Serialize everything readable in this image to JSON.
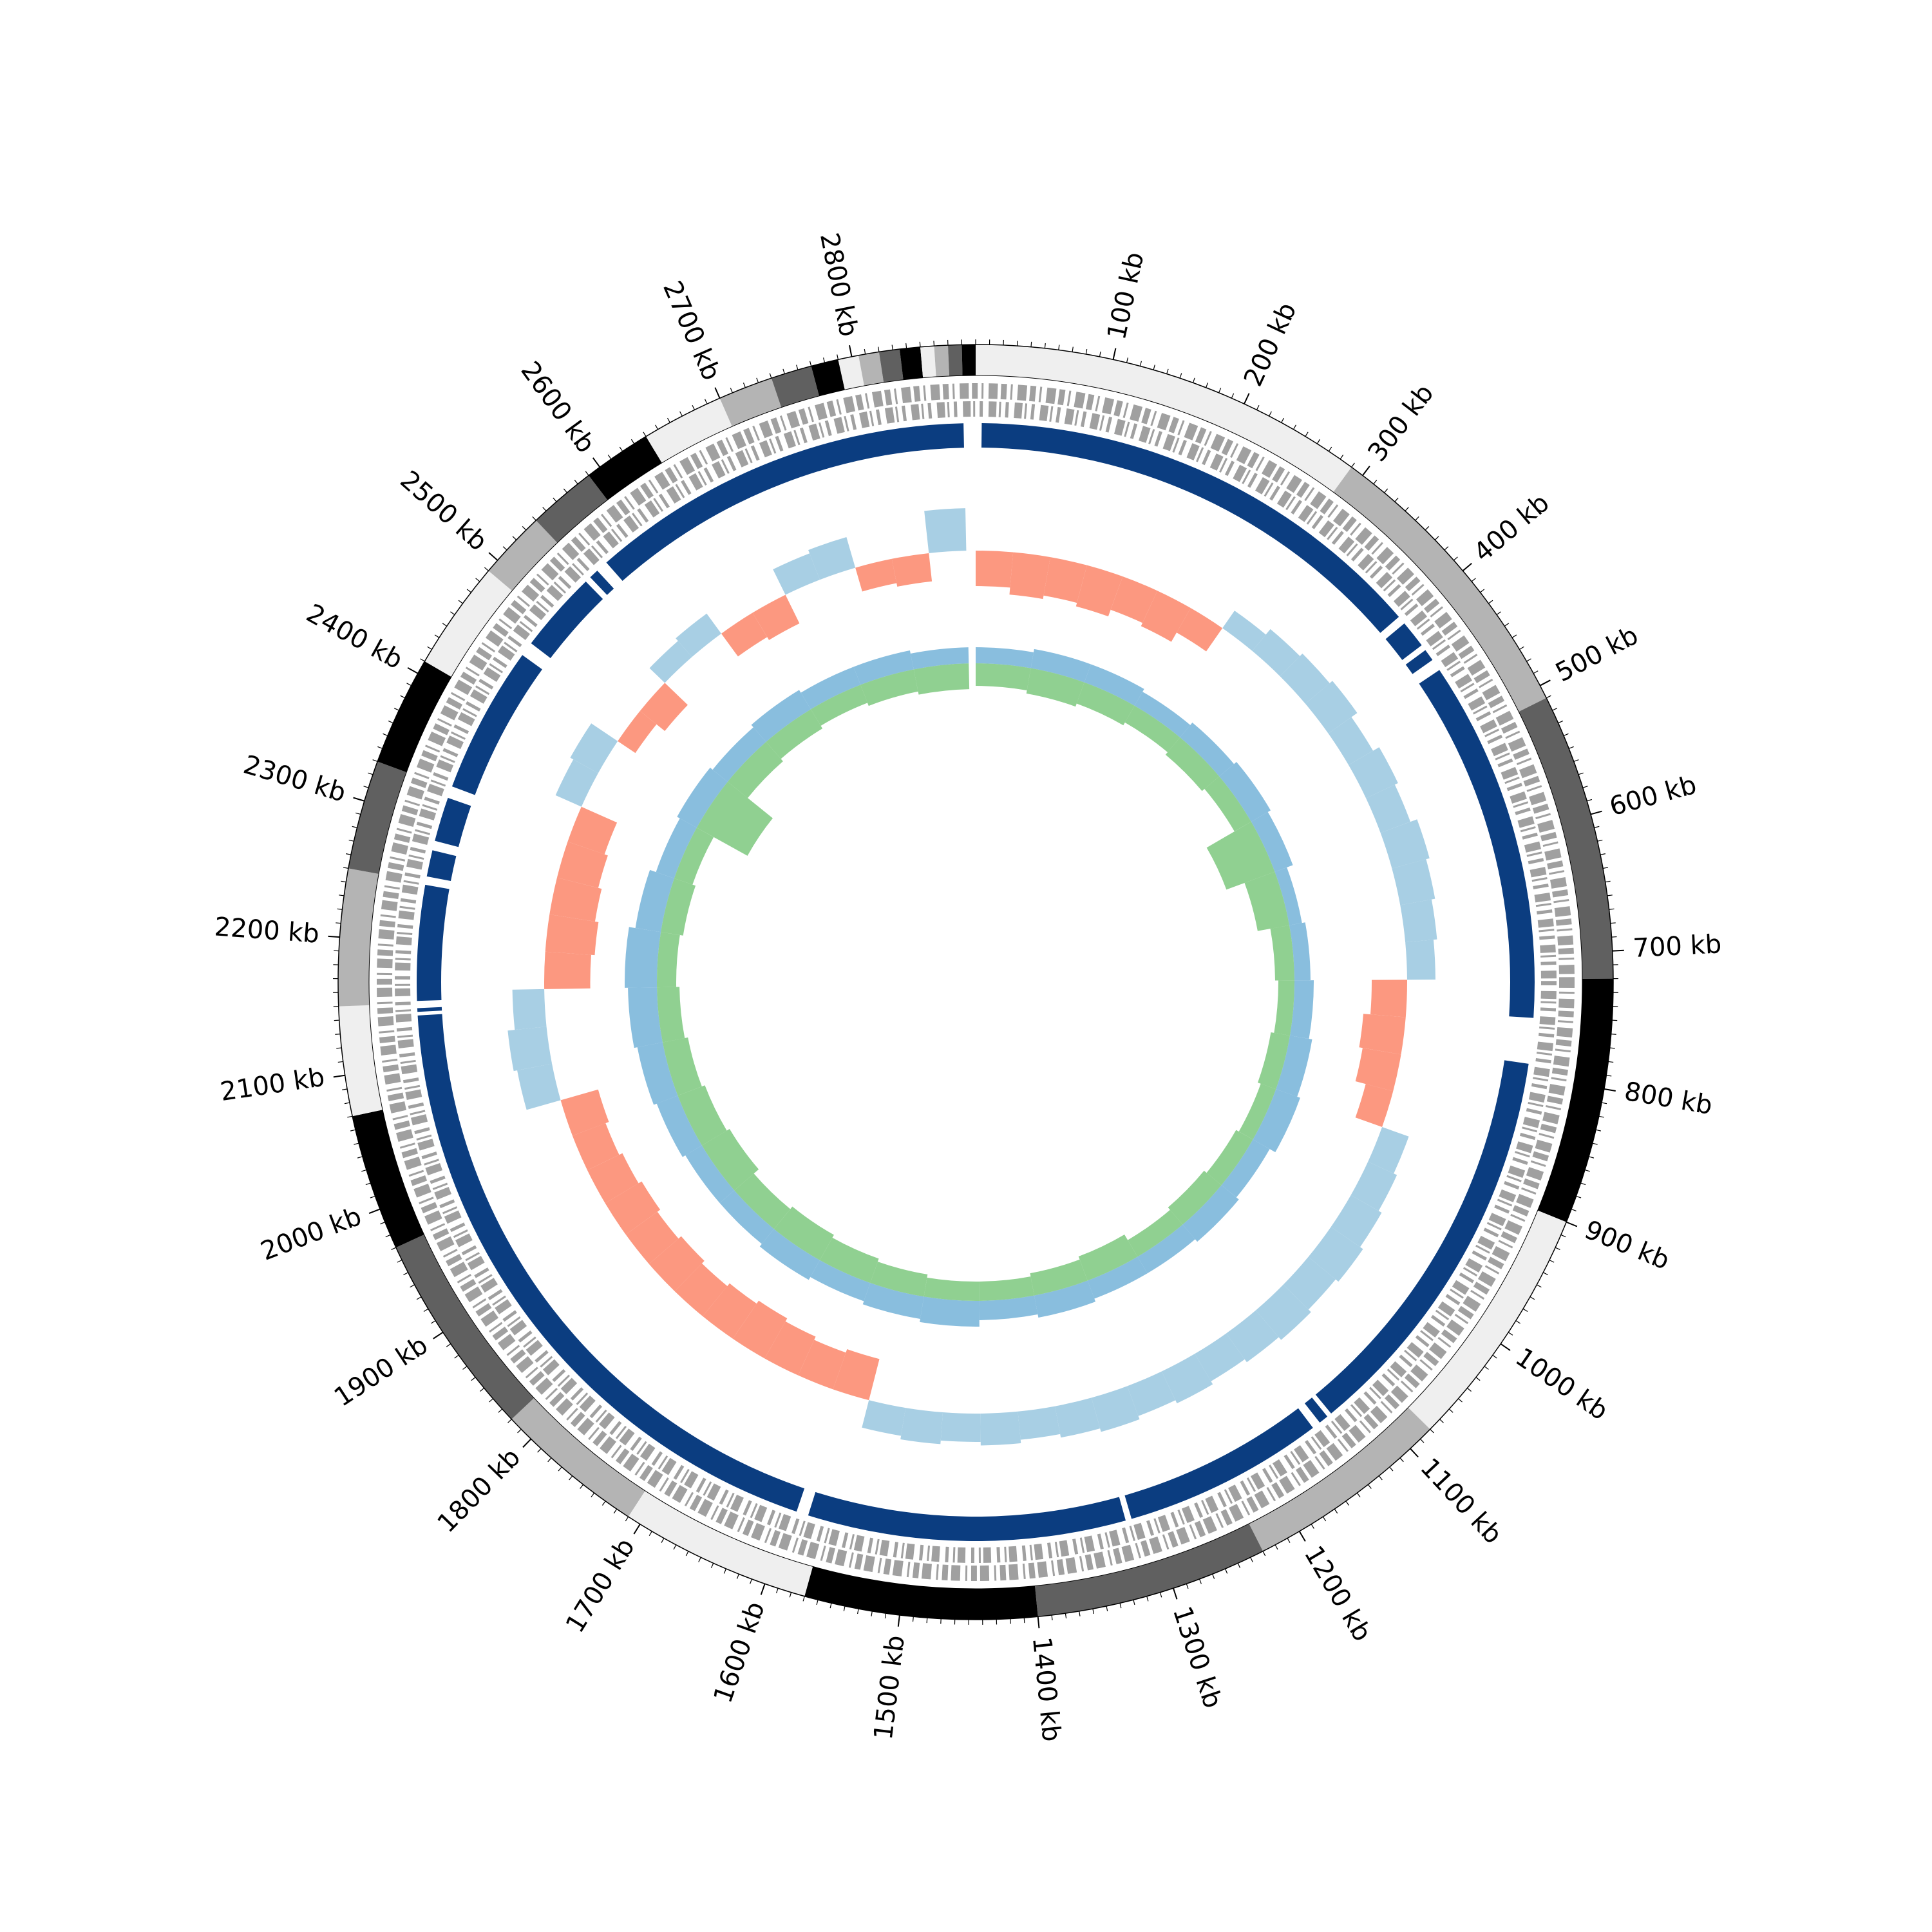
{
  "chart_data": {
    "type": "circular-genome",
    "xlim": [
      0,
      2890
    ],
    "xticks": [
      {
        "value": 100,
        "label": "100 kb"
      },
      {
        "value": 200,
        "label": "200 kb"
      },
      {
        "value": 300,
        "label": "300 kb"
      },
      {
        "value": 400,
        "label": "400 kb"
      },
      {
        "value": 500,
        "label": "500 kb"
      },
      {
        "value": 600,
        "label": "600 kb"
      },
      {
        "value": 700,
        "label": "700 kb"
      },
      {
        "value": 800,
        "label": "800 kb"
      },
      {
        "value": 900,
        "label": "900 kb"
      },
      {
        "value": 1000,
        "label": "1000 kb"
      },
      {
        "value": 1100,
        "label": "1100 kb"
      },
      {
        "value": 1200,
        "label": "1200 kb"
      },
      {
        "value": 1300,
        "label": "1300 kb"
      },
      {
        "value": 1400,
        "label": "1400 kb"
      },
      {
        "value": 1500,
        "label": "1500 kb"
      },
      {
        "value": 1600,
        "label": "1600 kb"
      },
      {
        "value": 1700,
        "label": "1700 kb"
      },
      {
        "value": 1800,
        "label": "1800 kb"
      },
      {
        "value": 1900,
        "label": "1900 kb"
      },
      {
        "value": 2000,
        "label": "2000 kb"
      },
      {
        "value": 2100,
        "label": "2100 kb"
      },
      {
        "value": 2200,
        "label": "2200 kb"
      },
      {
        "value": 2300,
        "label": "2300 kb"
      },
      {
        "value": 2400,
        "label": "2400 kb"
      },
      {
        "value": 2500,
        "label": "2500 kb"
      },
      {
        "value": 2600,
        "label": "2600 kb"
      },
      {
        "value": 2700,
        "label": "2700 kb"
      },
      {
        "value": 2800,
        "label": "2800 kb"
      }
    ],
    "minor_tick_step": 10,
    "contigs": [
      {
        "start": 0,
        "end": 290,
        "color": "#efefef"
      },
      {
        "start": 290,
        "end": 510,
        "color": "#b4b4b4"
      },
      {
        "start": 510,
        "end": 720,
        "color": "#606060"
      },
      {
        "start": 720,
        "end": 900,
        "color": "#000000"
      },
      {
        "start": 900,
        "end": 1080,
        "color": "#efefef"
      },
      {
        "start": 1080,
        "end": 1230,
        "color": "#b4b4b4"
      },
      {
        "start": 1230,
        "end": 1400,
        "color": "#606060"
      },
      {
        "start": 1400,
        "end": 1570,
        "color": "#000000"
      },
      {
        "start": 1570,
        "end": 1710,
        "color": "#efefef"
      },
      {
        "start": 1710,
        "end": 1820,
        "color": "#b4b4b4"
      },
      {
        "start": 1820,
        "end": 1970,
        "color": "#606060"
      },
      {
        "start": 1970,
        "end": 2070,
        "color": "#000000"
      },
      {
        "start": 2070,
        "end": 2150,
        "color": "#efefef"
      },
      {
        "start": 2150,
        "end": 2250,
        "color": "#b4b4b4"
      },
      {
        "start": 2250,
        "end": 2330,
        "color": "#606060"
      },
      {
        "start": 2330,
        "end": 2410,
        "color": "#000000"
      },
      {
        "start": 2410,
        "end": 2490,
        "color": "#efefef"
      },
      {
        "start": 2490,
        "end": 2540,
        "color": "#b4b4b4"
      },
      {
        "start": 2540,
        "end": 2590,
        "color": "#606060"
      },
      {
        "start": 2590,
        "end": 2640,
        "color": "#000000"
      },
      {
        "start": 2640,
        "end": 2700,
        "color": "#efefef"
      },
      {
        "start": 2700,
        "end": 2740,
        "color": "#b4b4b4"
      },
      {
        "start": 2740,
        "end": 2770,
        "color": "#606060"
      },
      {
        "start": 2770,
        "end": 2790,
        "color": "#000000"
      },
      {
        "start": 2790,
        "end": 2805,
        "color": "#efefef"
      },
      {
        "start": 2805,
        "end": 2820,
        "color": "#b4b4b4"
      },
      {
        "start": 2820,
        "end": 2835,
        "color": "#606060"
      },
      {
        "start": 2835,
        "end": 2850,
        "color": "#000000"
      },
      {
        "start": 2850,
        "end": 2860,
        "color": "#efefef"
      },
      {
        "start": 2860,
        "end": 2870,
        "color": "#b4b4b4"
      },
      {
        "start": 2870,
        "end": 2880,
        "color": "#606060"
      },
      {
        "start": 2880,
        "end": 2890,
        "color": "#000000"
      }
    ],
    "blocks": {
      "color": "#0b3d80",
      "segments": [
        [
          5,
          395
        ],
        [
          402,
          425
        ],
        [
          430,
          440
        ],
        [
          450,
          752
        ],
        [
          790,
          1128
        ],
        [
          1132,
          1140
        ],
        [
          1147,
          1315
        ],
        [
          1320,
          1585
        ],
        [
          1595,
          2140
        ],
        [
          2143,
          2146
        ],
        [
          2152,
          2248
        ],
        [
          2255,
          2277
        ],
        [
          2285,
          2322
        ],
        [
          2332,
          2455
        ],
        [
          2467,
          2535
        ],
        [
          2540,
          2548
        ],
        [
          2558,
          2880
        ]
      ]
    },
    "gc_content": {
      "bin_kb": 40,
      "positive_color": "#9ecae1",
      "negative_color": "#fc8d72",
      "values": [
        -0.5,
        -0.6,
        -0.55,
        -0.6,
        -0.5,
        -0.55,
        -0.4,
        0.3,
        0.4,
        0.45,
        0.5,
        0.4,
        0.5,
        0.45,
        0.55,
        0.5,
        0.45,
        0.4,
        -0.5,
        -0.6,
        -0.55,
        -0.4,
        0.4,
        0.45,
        0.5,
        0.55,
        0.5,
        0.55,
        0.5,
        0.45,
        0.5,
        0.45,
        0.5,
        0.45,
        0.4,
        0.45,
        0.4,
        0.45,
        0.4,
        -0.6,
        -0.55,
        -0.6,
        -0.65,
        -0.6,
        -0.55,
        -0.6,
        -0.55,
        -0.6,
        -0.55,
        -0.5,
        -0.55,
        0.5,
        0.55,
        0.45,
        -0.65,
        -0.7,
        -0.65,
        -0.6,
        -0.55,
        0.4,
        0.45,
        -0.3,
        -0.45,
        0.3,
        0.35,
        -0.4,
        -0.45,
        0.4,
        0.45,
        -0.35,
        -0.4,
        0.6
      ]
    },
    "skew": {
      "bin_kb": 80,
      "series": [
        {
          "color": "#6baed6",
          "values": [
            0.25,
            0.3,
            0.3,
            0.25,
            0.3,
            0.35,
            0.3,
            0.2,
            0.25,
            0.3,
            0.35,
            0.4,
            0.3,
            0.35,
            0.3,
            0.3,
            0.35,
            0.3,
            0.4,
            0.35,
            0.3,
            0.35,
            0.3,
            0.3,
            0.35,
            0.4,
            0.45,
            0.5,
            0.4,
            0.3,
            0.35,
            0.3,
            0.35,
            0.3,
            0.3,
            0.25
          ]
        },
        {
          "color": "#74c476",
          "values": [
            -0.35,
            -0.4,
            -0.35,
            -0.3,
            -0.35,
            -0.3,
            -0.8,
            -0.5,
            -0.3,
            -0.25,
            -0.3,
            -0.25,
            -0.3,
            -0.35,
            -0.3,
            -0.4,
            -0.35,
            -0.3,
            -0.3,
            -0.35,
            -0.4,
            -0.45,
            -0.4,
            -0.5,
            -0.45,
            -0.4,
            -0.35,
            -0.3,
            -0.35,
            -0.3,
            -0.9,
            -0.4,
            -0.35,
            -0.3,
            -0.35,
            -0.4
          ]
        }
      ]
    }
  }
}
